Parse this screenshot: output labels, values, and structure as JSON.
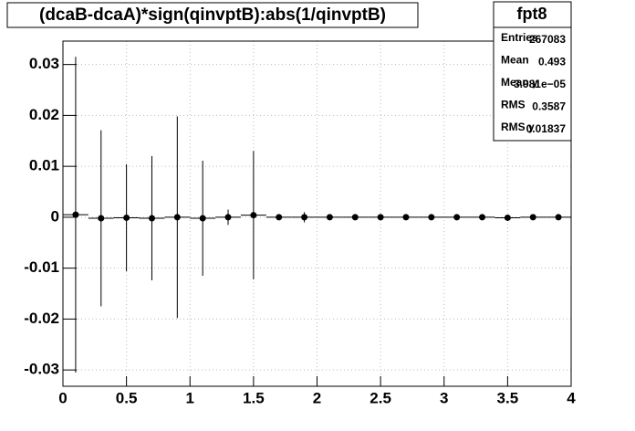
{
  "chart_data": {
    "type": "errorbar",
    "title": "(dcaB-dcaA)*sign(qinvptB):abs(1/qinvptB)",
    "x": [
      0.1,
      0.3,
      0.5,
      0.7,
      0.9,
      1.1,
      1.3,
      1.5,
      1.7,
      1.9,
      2.1,
      2.3,
      2.5,
      2.7,
      2.9,
      3.1,
      3.3,
      3.5,
      3.7,
      3.9
    ],
    "values": [
      0.0005,
      -0.0002,
      -0.0001,
      -0.0002,
      0.0,
      -0.0002,
      0.0,
      0.0004,
      0.0,
      0.0,
      0.0,
      0.0,
      0.0,
      0.0,
      0.0,
      0.0,
      0.0,
      -0.0001,
      0.0,
      0.0
    ],
    "errors": [
      0.031,
      0.0173,
      0.0105,
      0.0122,
      0.0198,
      0.0113,
      0.0015,
      0.0126,
      0.0003,
      0.001,
      0.0002,
      0.0002,
      0.0002,
      0.0002,
      0.0002,
      0.0002,
      0.0002,
      0.0002,
      0.0002,
      0.0002
    ],
    "color": "#000000",
    "xlim": [
      0,
      4
    ],
    "ylim": [
      -0.0332,
      0.0346
    ],
    "xticks": [
      0,
      0.5,
      1,
      1.5,
      2,
      2.5,
      3,
      3.5,
      4
    ],
    "yticks": [
      -0.03,
      -0.02,
      -0.01,
      0,
      0.01,
      0.02,
      0.03
    ],
    "grid": true,
    "stats": {
      "title": "fpt8",
      "rows": [
        {
          "label": "Entries",
          "value": "267083"
        },
        {
          "label": "Mean",
          "value": "0.493"
        },
        {
          "label": "Mean y",
          "value": "3.981e−05"
        },
        {
          "label": "RMS",
          "value": "0.3587"
        },
        {
          "label": "RMS y",
          "value": "0.01837"
        }
      ]
    }
  }
}
